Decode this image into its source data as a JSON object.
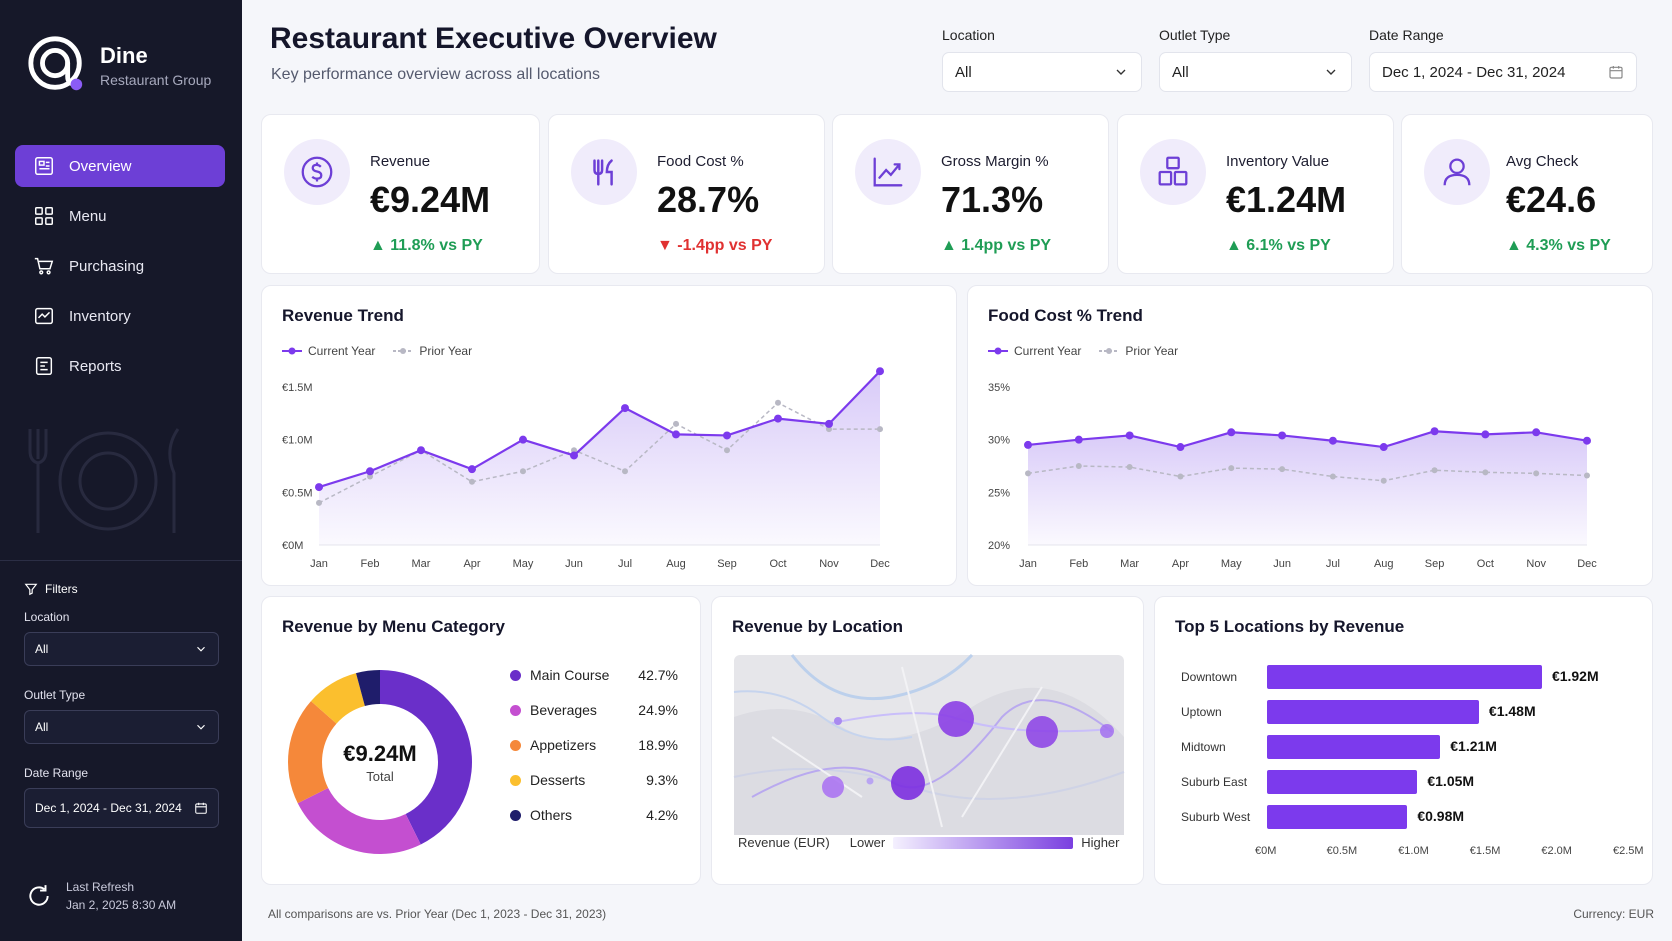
{
  "brand": {
    "name": "Dine",
    "sub": "Restaurant Group"
  },
  "nav": [
    {
      "label": "Overview",
      "icon": "dashboard-icon",
      "active": true
    },
    {
      "label": "Menu",
      "icon": "menu-grid-icon"
    },
    {
      "label": "Purchasing",
      "icon": "cart-icon"
    },
    {
      "label": "Inventory",
      "icon": "inventory-icon"
    },
    {
      "label": "Reports",
      "icon": "report-icon"
    }
  ],
  "sidebar_filters": {
    "title": "Filters",
    "location_label": "Location",
    "location_value": "All",
    "outlet_label": "Outlet Type",
    "outlet_value": "All",
    "date_label": "Date Range",
    "date_value": "Dec 1, 2024 - Dec 31, 2024"
  },
  "refresh": {
    "label": "Last Refresh",
    "time": "Jan 2, 2025 8:30 AM"
  },
  "header": {
    "title": "Restaurant Executive Overview",
    "subtitle": "Key performance overview across all locations",
    "location_label": "Location",
    "location_value": "All",
    "outlet_label": "Outlet Type",
    "outlet_value": "All",
    "date_label": "Date Range",
    "date_value": "Dec 1, 2024 - Dec 31, 2024"
  },
  "kpis": [
    {
      "label": "Revenue",
      "value": "€9.24M",
      "delta": "▲ 11.8% vs PY",
      "dir": "up",
      "icon": "dollar-icon"
    },
    {
      "label": "Food Cost %",
      "value": "28.7%",
      "delta": "▼ -1.4pp vs PY",
      "dir": "down",
      "icon": "utensils-icon"
    },
    {
      "label": "Gross Margin %",
      "value": "71.3%",
      "delta": "▲ 1.4pp vs PY",
      "dir": "up",
      "icon": "trend-chart-icon"
    },
    {
      "label": "Inventory Value",
      "value": "€1.24M",
      "delta": "▲ 6.1% vs PY",
      "dir": "up",
      "icon": "boxes-icon"
    },
    {
      "label": "Avg Check",
      "value": "€24.6",
      "delta": "▲ 4.3% vs PY",
      "dir": "up",
      "icon": "user-icon"
    }
  ],
  "colors": {
    "accent": "#7c3aed",
    "sidebar": "#161829",
    "prior": "#b8b8c4",
    "up": "#1f9d55",
    "down": "#e03131"
  },
  "revenue_trend": {
    "title": "Revenue Trend",
    "legend": [
      "Current Year",
      "Prior Year"
    ]
  },
  "food_cost_trend": {
    "title": "Food Cost % Trend",
    "legend": [
      "Current Year",
      "Prior Year"
    ]
  },
  "menu_category": {
    "title": "Revenue by Menu Category",
    "total_value": "€9.24M",
    "total_label": "Total",
    "items": [
      {
        "name": "Main Course",
        "pct": "42.7%",
        "value": 42.7,
        "color": "#6a2fc9"
      },
      {
        "name": "Beverages",
        "pct": "24.9%",
        "value": 24.9,
        "color": "#c44fd0"
      },
      {
        "name": "Appetizers",
        "pct": "18.9%",
        "value": 18.9,
        "color": "#f5883a"
      },
      {
        "name": "Desserts",
        "pct": "9.3%",
        "value": 9.3,
        "color": "#fbbf2e"
      },
      {
        "name": "Others",
        "pct": "4.2%",
        "value": 4.2,
        "color": "#1f1d6b"
      }
    ]
  },
  "location_map": {
    "title": "Revenue by Location",
    "legend_title": "Revenue (EUR)",
    "legend_low": "Lower",
    "legend_high": "Higher"
  },
  "top_locations": {
    "title": "Top 5 Locations by Revenue",
    "items": [
      {
        "name": "Downtown",
        "value": 1.92,
        "label": "€1.92M"
      },
      {
        "name": "Uptown",
        "value": 1.48,
        "label": "€1.48M"
      },
      {
        "name": "Midtown",
        "value": 1.21,
        "label": "€1.21M"
      },
      {
        "name": "Suburb East",
        "value": 1.05,
        "label": "€1.05M"
      },
      {
        "name": "Suburb West",
        "value": 0.98,
        "label": "€0.98M"
      }
    ],
    "axis": [
      "€0M",
      "€0.5M",
      "€1.0M",
      "€1.5M",
      "€2.0M",
      "€2.5M"
    ],
    "max": 2.5
  },
  "footer": {
    "note": "All comparisons are vs. Prior Year (Dec 1, 2023 - Dec 31, 2023)",
    "currency": "Currency: EUR"
  },
  "chart_data": [
    {
      "type": "area",
      "categories": [
        "Jan",
        "Feb",
        "Mar",
        "Apr",
        "May",
        "Jun",
        "Jul",
        "Aug",
        "Sep",
        "Oct",
        "Nov",
        "Dec"
      ],
      "y_ticks": [
        "€0M",
        "€0.5M",
        "€1.0M",
        "€1.5M"
      ],
      "ylim": [
        0,
        1.5
      ],
      "series": [
        {
          "name": "Current Year",
          "values": [
            0.55,
            0.7,
            0.9,
            0.72,
            1.0,
            0.85,
            1.3,
            1.05,
            1.04,
            1.2,
            1.15,
            1.65
          ]
        },
        {
          "name": "Prior Year",
          "values": [
            0.4,
            0.65,
            0.9,
            0.6,
            0.7,
            0.9,
            0.7,
            1.15,
            0.9,
            1.35,
            1.1,
            1.1
          ]
        }
      ]
    },
    {
      "type": "area",
      "categories": [
        "Jan",
        "Feb",
        "Mar",
        "Apr",
        "May",
        "Jun",
        "Jul",
        "Aug",
        "Sep",
        "Oct",
        "Nov",
        "Dec"
      ],
      "y_ticks": [
        "20%",
        "25%",
        "30%",
        "35%"
      ],
      "ylim": [
        20,
        35
      ],
      "series": [
        {
          "name": "Current Year",
          "values": [
            29.5,
            30.0,
            30.4,
            29.3,
            30.7,
            30.4,
            29.9,
            29.3,
            30.8,
            30.5,
            30.7,
            29.9
          ]
        },
        {
          "name": "Prior Year",
          "values": [
            26.8,
            27.5,
            27.4,
            26.5,
            27.3,
            27.2,
            26.5,
            26.1,
            27.1,
            26.9,
            26.8,
            26.6
          ]
        }
      ]
    },
    {
      "type": "pie",
      "categories": [
        "Main Course",
        "Beverages",
        "Appetizers",
        "Desserts",
        "Others"
      ],
      "values": [
        42.7,
        24.9,
        18.9,
        9.3,
        4.2
      ]
    },
    {
      "type": "bar",
      "categories": [
        "Downtown",
        "Uptown",
        "Midtown",
        "Suburb East",
        "Suburb West"
      ],
      "values": [
        1.92,
        1.48,
        1.21,
        1.05,
        0.98
      ],
      "xlim": [
        0,
        2.5
      ]
    }
  ]
}
